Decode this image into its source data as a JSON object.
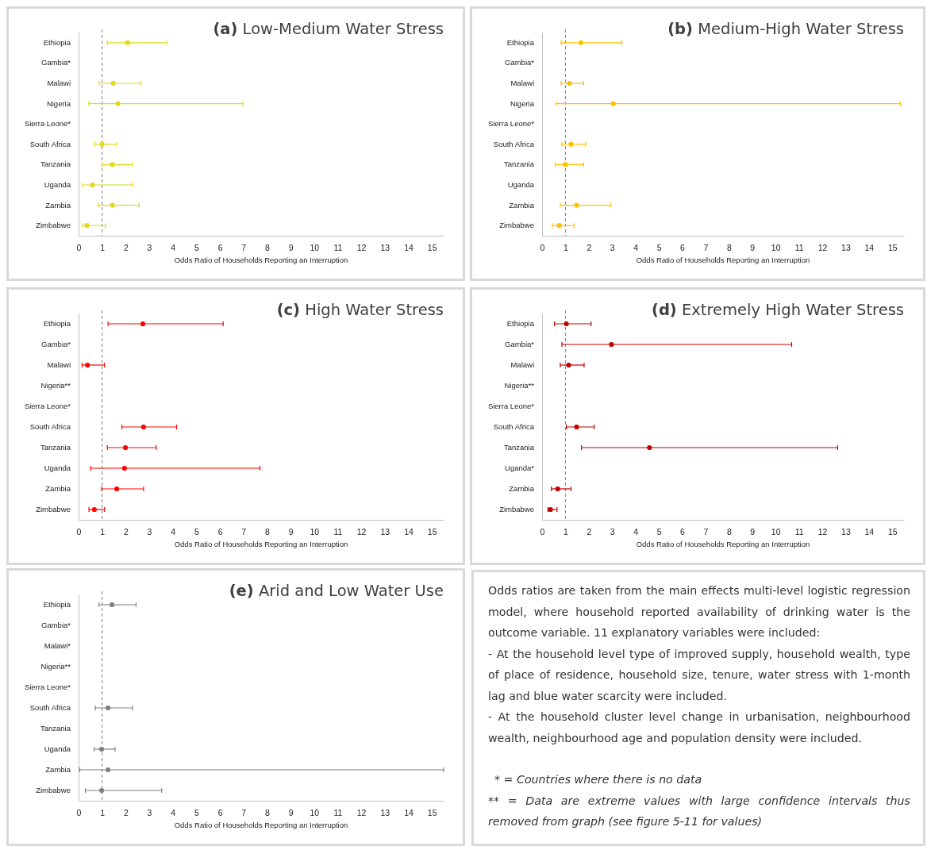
{
  "chart_data": [
    {
      "type": "scatter",
      "orientation": "horizontal",
      "title": "(a) Low-Medium Water Stress",
      "xlabel": "Odds Ratio of Households Reporting an Interruption",
      "categories": [
        "Ethiopia",
        "Gambia*",
        "Malawi",
        "Nigeria",
        "Sierra Leone*",
        "South Africa",
        "Tanzania",
        "Uganda",
        "Zambia",
        "Zimbabwe"
      ],
      "series": [
        {
          "color": "#e0d91c",
          "values": [
            2.08,
            null,
            1.47,
            1.67,
            null,
            1.0,
            1.44,
            0.59,
            1.44,
            0.36
          ],
          "errors": [
            [
              1.22,
              3.76
            ],
            null,
            [
              0.88,
              2.64
            ],
            [
              0.43,
              6.98
            ],
            null,
            [
              0.68,
              1.61
            ],
            [
              0.99,
              2.29
            ],
            [
              0.17,
              2.29
            ],
            [
              0.84,
              2.57
            ],
            [
              0.17,
              1.15
            ]
          ]
        }
      ],
      "xlim": [
        0,
        15.5
      ],
      "xticks": [
        0,
        1,
        2,
        3,
        4,
        5,
        6,
        7,
        8,
        9,
        10,
        11,
        12,
        13,
        14,
        15
      ],
      "marker": "circle",
      "ref_lines": [
        {
          "axis": "x",
          "value": 1,
          "color": "#7f7f7f",
          "line_style": "dashed"
        }
      ]
    },
    {
      "type": "scatter",
      "orientation": "horizontal",
      "title": "(b) Medium-High Water Stress",
      "xlabel": "Odds Ratio of Households Reporting an Interruption",
      "categories": [
        "Ethiopia",
        "Gambia*",
        "Malawi",
        "Nigeria",
        "Sierra Leone*",
        "South Africa",
        "Tanzania",
        "Uganda",
        "Zambia",
        "Zimbabwe"
      ],
      "series": [
        {
          "color": "#ffc000",
          "values": [
            1.66,
            null,
            1.17,
            3.05,
            null,
            1.24,
            1.0,
            null,
            1.48,
            0.74
          ],
          "errors": [
            [
              0.82,
              3.41
            ],
            null,
            [
              0.82,
              1.78
            ],
            [
              0.61,
              15.34
            ],
            null,
            [
              0.85,
              1.88
            ],
            [
              0.57,
              1.78
            ],
            null,
            [
              0.78,
              2.95
            ],
            [
              0.44,
              1.37
            ]
          ]
        }
      ],
      "xlim": [
        0,
        15.5
      ],
      "xticks": [
        0,
        1,
        2,
        3,
        4,
        5,
        6,
        7,
        8,
        9,
        10,
        11,
        12,
        13,
        14,
        15
      ],
      "marker": "circle",
      "ref_lines": [
        {
          "axis": "x",
          "value": 1,
          "color": "#7f7f7f",
          "line_style": "dashed"
        }
      ]
    },
    {
      "type": "scatter",
      "orientation": "horizontal",
      "title": "(c) High Water Stress",
      "xlabel": "Odds Ratio of Households Reporting an Interruption",
      "categories": [
        "Ethiopia",
        "Gambia*",
        "Malawi",
        "Nigeria**",
        "Sierra Leone*",
        "South Africa",
        "Tanzania",
        "Uganda",
        "Zambia",
        "Zimbabwe"
      ],
      "series": [
        {
          "color": "#ff0000",
          "values": [
            2.73,
            null,
            0.38,
            null,
            null,
            2.76,
            1.99,
            1.95,
            1.62,
            0.67
          ],
          "errors": [
            [
              1.25,
              6.14
            ],
            null,
            [
              0.15,
              1.1
            ],
            null,
            null,
            [
              1.84,
              4.16
            ],
            [
              1.22,
              3.3
            ],
            [
              0.51,
              7.7
            ],
            [
              0.98,
              2.76
            ],
            [
              0.44,
              1.1
            ]
          ]
        }
      ],
      "xlim": [
        0,
        15.5
      ],
      "xticks": [
        0,
        1,
        2,
        3,
        4,
        5,
        6,
        7,
        8,
        9,
        10,
        11,
        12,
        13,
        14,
        15
      ],
      "marker": "circle",
      "ref_lines": [
        {
          "axis": "x",
          "value": 1,
          "color": "#7f7f7f",
          "line_style": "dashed"
        }
      ]
    },
    {
      "type": "scatter",
      "orientation": "horizontal",
      "title": "(d) Extremely High Water Stress",
      "xlabel": "Odds Ratio of Households Reporting an Interruption",
      "categories": [
        "Ethiopia",
        "Gambia*",
        "Malawi",
        "Nigeria**",
        "Sierra Leone*",
        "South Africa",
        "Tanzania",
        "Uganda*",
        "Zambia",
        "Zimbabwe"
      ],
      "series": [
        {
          "color": "#c00000",
          "values": [
            1.04,
            2.97,
            1.14,
            null,
            null,
            1.48,
            4.6,
            null,
            0.67,
            0.36
          ],
          "errors": [
            [
              0.53,
              2.1
            ],
            [
              0.85,
              10.69
            ],
            [
              0.78,
              1.8
            ],
            null,
            null,
            [
              1.04,
              2.23
            ],
            [
              1.69,
              12.66
            ],
            null,
            [
              0.4,
              1.24
            ],
            [
              0.25,
              0.64
            ]
          ]
        }
      ],
      "xlim": [
        0,
        15.5
      ],
      "xticks": [
        0,
        1,
        2,
        3,
        4,
        5,
        6,
        7,
        8,
        9,
        10,
        11,
        12,
        13,
        14,
        15
      ],
      "marker": "circle",
      "ref_lines": [
        {
          "axis": "x",
          "value": 1,
          "color": "#7f7f7f",
          "line_style": "dashed"
        }
      ]
    },
    {
      "type": "scatter",
      "orientation": "horizontal",
      "title": "(e) Arid and Low Water Use",
      "xlabel": "Odds Ratio of Households Reporting an Interruption",
      "categories": [
        "Ethiopia",
        "Gambia*",
        "Malawi*",
        "Nigeria**",
        "Sierra Leone*",
        "South Africa",
        "Tanzania",
        "Uganda",
        "Zambia",
        "Zimbabwe"
      ],
      "series": [
        {
          "color": "#808080",
          "values": [
            1.42,
            null,
            null,
            null,
            null,
            1.25,
            null,
            0.98,
            1.25,
            0.98
          ],
          "errors": [
            [
              0.87,
              2.44
            ],
            null,
            null,
            null,
            null,
            [
              0.71,
              2.29
            ],
            null,
            [
              0.66,
              1.55
            ],
            [
              0.05,
              15.5
            ],
            [
              0.29,
              3.53
            ]
          ]
        }
      ],
      "xlim": [
        0,
        15.5
      ],
      "xticks": [
        0,
        1,
        2,
        3,
        4,
        5,
        6,
        7,
        8,
        9,
        10,
        11,
        12,
        13,
        14,
        15
      ],
      "marker": "circle",
      "ref_lines": [
        {
          "axis": "x",
          "value": 1,
          "color": "#7f7f7f",
          "line_style": "dashed"
        }
      ]
    },
    {
      "type": "other",
      "annotations": [
        "Odds ratios are taken from the main effects multi-level logistic regression model, where household reported availability of drinking water is the outcome variable. 11 explanatory variables were included:",
        "- At the household level type of improved supply, household wealth, type of place of residence, household size, tenure, water stress with 1-month lag and blue water scarcity were included.",
        "- At the household cluster level change in urbanisation, neighbourhood wealth, neighbourhood age and population density were included.",
        "*  = Countries where there is no data",
        "** = Data are extreme values with large confidence intervals thus removed from graph (see figure 5-11 for values)"
      ]
    }
  ]
}
